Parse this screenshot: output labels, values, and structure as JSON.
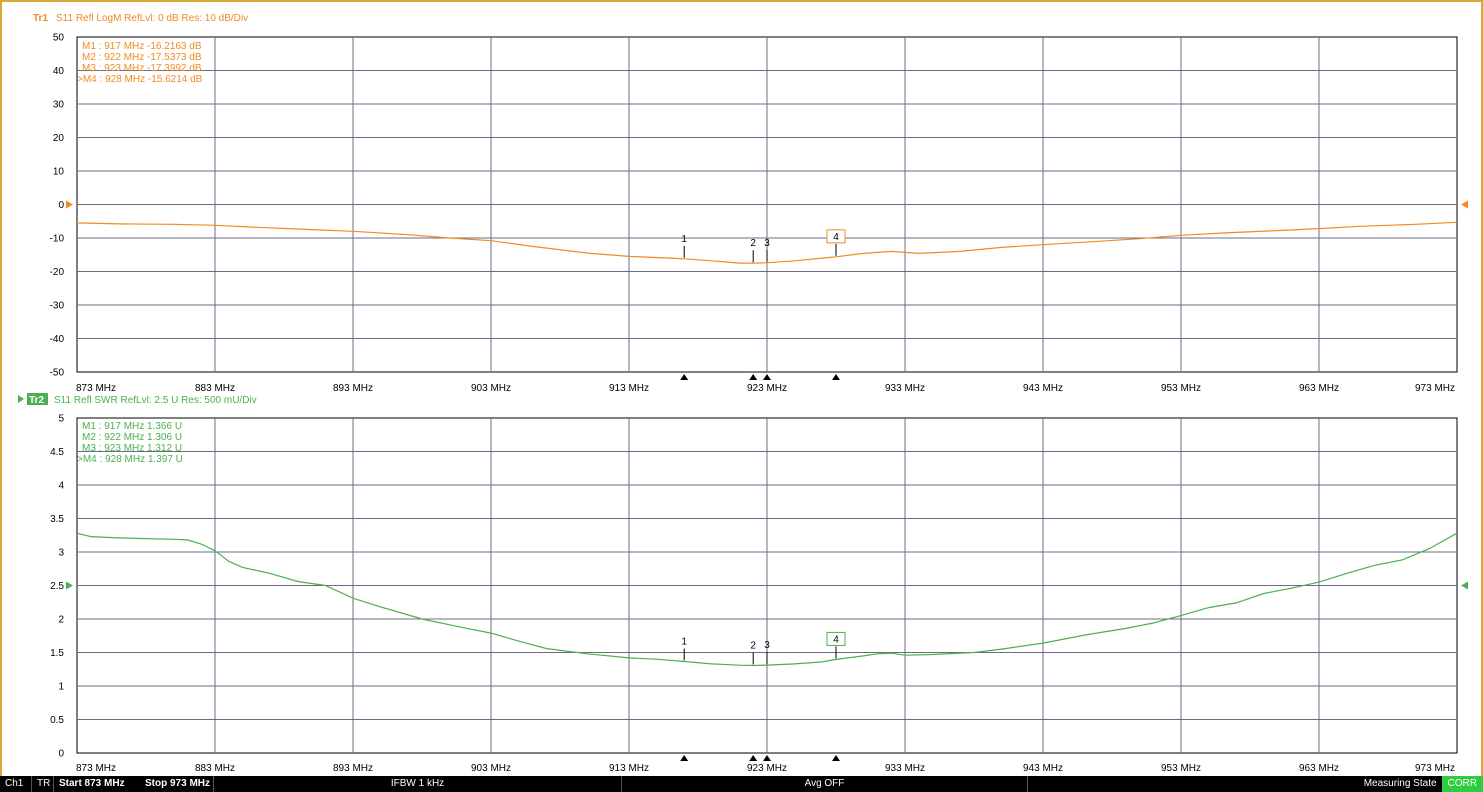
{
  "chart_data": [
    {
      "type": "line",
      "trace_label": "Tr1",
      "header": "S11 Refl LogM RefLvl: 0  dB Res: 10  dB/Div",
      "color": "#f08a24",
      "xlim": [
        873,
        973
      ],
      "ylim": [
        -50,
        50
      ],
      "x_ticks": [
        873,
        883,
        893,
        903,
        913,
        923,
        933,
        943,
        953,
        963,
        973
      ],
      "x_tick_labels": [
        "873 MHz",
        "883 MHz",
        "893 MHz",
        "903 MHz",
        "913 MHz",
        "923 MHz",
        "933 MHz",
        "943 MHz",
        "953 MHz",
        "963 MHz",
        "973 MHz"
      ],
      "y_ticks": [
        50,
        40,
        30,
        20,
        10,
        0,
        -10,
        -20,
        -30,
        -40,
        -50
      ],
      "y_tick_labels": [
        "50",
        "40",
        "30",
        "20",
        "10",
        "0",
        "-10",
        "-20",
        "-30",
        "-40",
        "-50"
      ],
      "ref_level": 0,
      "grid": true,
      "series": [
        {
          "x": [
            873,
            876,
            880,
            883,
            886,
            890,
            893,
            897,
            900,
            903,
            906,
            910,
            913,
            916,
            917,
            919,
            921,
            922,
            923,
            925,
            927,
            928,
            930,
            932,
            934,
            937,
            940,
            943,
            947,
            950,
            953,
            956,
            960,
            963,
            966,
            970,
            973
          ],
          "y": [
            -5.5,
            -5.8,
            -5.9,
            -6.2,
            -6.8,
            -7.5,
            -8.0,
            -9.0,
            -10.0,
            -10.8,
            -12.5,
            -14.5,
            -15.5,
            -16.0,
            -16.2,
            -16.8,
            -17.5,
            -17.5,
            -17.4,
            -16.8,
            -16.0,
            -15.6,
            -14.6,
            -14.0,
            -14.6,
            -14.0,
            -12.8,
            -12.0,
            -11.0,
            -10.2,
            -9.2,
            -8.5,
            -7.8,
            -7.2,
            -6.5,
            -5.9,
            -5.3
          ]
        }
      ],
      "markers": [
        {
          "id": "1",
          "x": 917,
          "y": -16.2163,
          "readout": "M1 :  917 MHz  -16.2163  dB",
          "active": false
        },
        {
          "id": "2",
          "x": 922,
          "y": -17.5373,
          "readout": "M2 :  922 MHz  -17.5373  dB",
          "active": false
        },
        {
          "id": "3",
          "x": 923,
          "y": -17.3992,
          "readout": "M3 :  923 MHz  -17.3992  dB",
          "active": false
        },
        {
          "id": "4",
          "x": 928,
          "y": -15.6214,
          "readout": ">M4 :  928 MHz  -15.6214  dB",
          "active": true
        }
      ]
    },
    {
      "type": "line",
      "trace_label": "Tr2",
      "header": "S11 Refl SWR RefLvl: 2.5  U Res: 500 mU/Div",
      "color": "#4caf50",
      "xlim": [
        873,
        973
      ],
      "ylim": [
        0,
        5
      ],
      "x_ticks": [
        873,
        883,
        893,
        903,
        913,
        923,
        933,
        943,
        953,
        963,
        973
      ],
      "x_tick_labels": [
        "873 MHz",
        "883 MHz",
        "893 MHz",
        "903 MHz",
        "913 MHz",
        "923 MHz",
        "933 MHz",
        "943 MHz",
        "953 MHz",
        "963 MHz",
        "973 MHz"
      ],
      "y_ticks": [
        5,
        4.5,
        4,
        3.5,
        3,
        2.5,
        2,
        1.5,
        1,
        0.5,
        0
      ],
      "y_tick_labels": [
        "5",
        "4.5",
        "4",
        "3.5",
        "3",
        "2.5",
        "2",
        "1.5",
        "1",
        "0.5",
        "0"
      ],
      "ref_level": 2.5,
      "grid": true,
      "series": [
        {
          "x": [
            873,
            874,
            876,
            878,
            880,
            881,
            882,
            883,
            884,
            885,
            887,
            889,
            891,
            893,
            895,
            898,
            901,
            903,
            905,
            907,
            910,
            913,
            915,
            917,
            919,
            921,
            922,
            923,
            925,
            927,
            928,
            930,
            931,
            932,
            933,
            935,
            938,
            940,
            943,
            946,
            949,
            951,
            953,
            955,
            957,
            959,
            961,
            963,
            965,
            967,
            969,
            971,
            973
          ],
          "y": [
            3.28,
            3.23,
            3.21,
            3.2,
            3.19,
            3.18,
            3.12,
            3.02,
            2.86,
            2.77,
            2.68,
            2.56,
            2.5,
            2.31,
            2.18,
            2.0,
            1.87,
            1.79,
            1.67,
            1.56,
            1.48,
            1.42,
            1.4,
            1.366,
            1.33,
            1.31,
            1.306,
            1.312,
            1.33,
            1.36,
            1.397,
            1.45,
            1.48,
            1.49,
            1.46,
            1.47,
            1.5,
            1.55,
            1.64,
            1.76,
            1.86,
            1.94,
            2.05,
            2.17,
            2.24,
            2.38,
            2.46,
            2.55,
            2.68,
            2.8,
            2.88,
            3.05,
            3.28
          ]
        }
      ],
      "markers": [
        {
          "id": "1",
          "x": 917,
          "y": 1.366,
          "readout": "M1 :  917 MHz  1.366  U",
          "active": false
        },
        {
          "id": "2",
          "x": 922,
          "y": 1.306,
          "readout": "M2 :  922 MHz  1.306  U",
          "active": false
        },
        {
          "id": "3",
          "x": 923,
          "y": 1.312,
          "readout": "M3 :  923 MHz  1.312  U",
          "active": false
        },
        {
          "id": "4",
          "x": 928,
          "y": 1.397,
          "readout": ">M4 :  928 MHz  1.397  U",
          "active": true
        }
      ]
    }
  ],
  "status_bar": {
    "channel": "Ch1",
    "mode": "TR",
    "start": "Start 873 MHz",
    "stop": "Stop 973 MHz",
    "ifbw": "IFBW 1 kHz",
    "avg": "Avg OFF",
    "state": "Measuring State",
    "corr": "CORR"
  }
}
